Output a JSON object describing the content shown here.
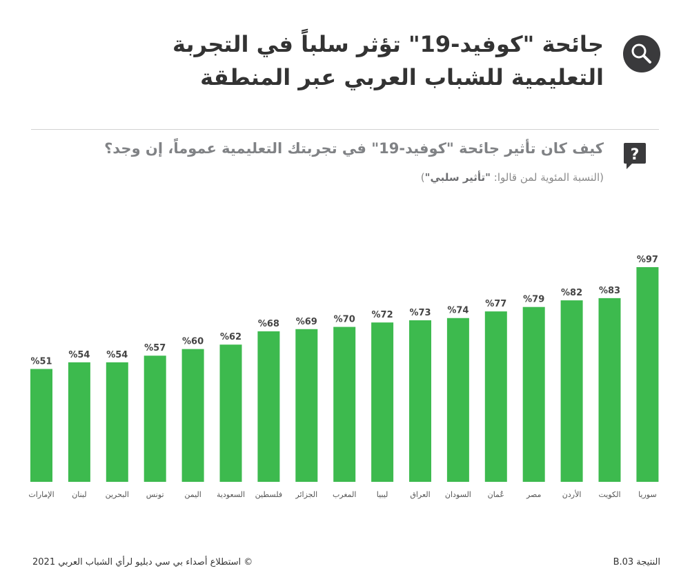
{
  "header": {
    "title_line1": "جائحة \"كوفيد-19\" تؤثر سلباً في التجربة",
    "title_line2": "التعليمية للشباب العربي عبر المنطقة"
  },
  "question": {
    "text": "كيف كان تأثير جائحة \"كوفيد-19\" في تجربتك التعليمية عموماً، إن وجد؟",
    "subtitle_prefix": "(النسبة المئوية لمن قالوا: ",
    "subtitle_bold": "\"تأثير سلبي\"",
    "subtitle_suffix": ")"
  },
  "footer": {
    "source": "©  استطلاع أصداء بي سي دبليو لرأي الشباب العربي 2021",
    "code": "النتيجة B.03"
  },
  "colors": {
    "bar": "#3dba4e",
    "icon_bg": "#3a3a3c",
    "label": "#555555"
  },
  "icons": {
    "header": "search-icon",
    "question": "question-bubble-icon"
  },
  "chart_data": {
    "type": "bar",
    "categories": [
      "الإمارات",
      "لبنان",
      "البحرين",
      "تونس",
      "اليمن",
      "السعودية",
      "فلسطين",
      "الجزائر",
      "المغرب",
      "ليبيا",
      "العراق",
      "السودان",
      "عُمان",
      "مصر",
      "الأردن",
      "الكويت",
      "سوريا"
    ],
    "values": [
      51,
      54,
      54,
      57,
      60,
      62,
      68,
      69,
      70,
      72,
      73,
      74,
      77,
      79,
      82,
      83,
      97
    ],
    "value_labels": [
      "%51",
      "%54",
      "%54",
      "%57",
      "%60",
      "%62",
      "%68",
      "%69",
      "%70",
      "%72",
      "%73",
      "%74",
      "%77",
      "%79",
      "%82",
      "%83",
      "%97"
    ],
    "ylim": [
      0,
      100
    ],
    "grid": false,
    "legend": "none"
  }
}
